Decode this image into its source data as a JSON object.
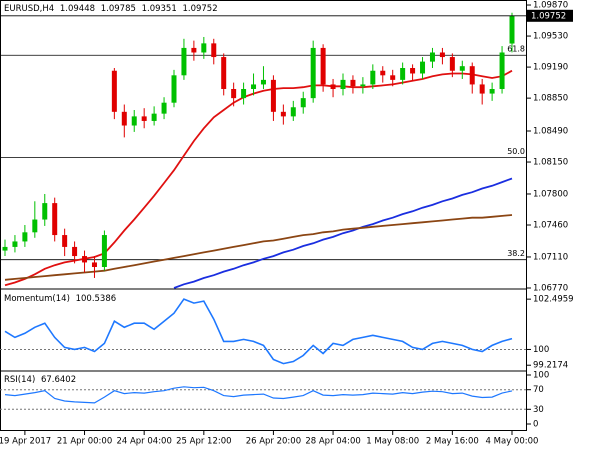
{
  "chart_data": {
    "type": "candlestick",
    "symbol": "EURUSD,H4",
    "categories": [
      null,
      null,
      "19 Apr 2017",
      null,
      null,
      null,
      null,
      null,
      "21 Apr 00:00",
      null,
      null,
      null,
      null,
      null,
      "24 Apr 04:00",
      null,
      null,
      null,
      null,
      null,
      "25 Apr 12:00",
      null,
      null,
      null,
      null,
      null,
      null,
      "26 Apr 20:00",
      null,
      null,
      null,
      null,
      null,
      "28 Apr 04:00",
      null,
      null,
      null,
      null,
      null,
      "1 May 08:00",
      null,
      null,
      null,
      null,
      null,
      "2 May 16:00",
      null,
      null,
      null,
      null,
      null,
      "4 May 00:00"
    ],
    "open": [
      1.0718,
      1.0722,
      1.0728,
      1.0738,
      1.0752,
      1.077,
      1.0735,
      1.0722,
      1.0712,
      1.0705,
      1.07,
      1.0915,
      1.087,
      1.0855,
      1.0865,
      1.086,
      1.0868,
      1.088,
      1.091,
      1.094,
      1.0935,
      1.0945,
      1.093,
      1.0895,
      1.0885,
      1.0895,
      1.09,
      1.0905,
      1.087,
      1.0865,
      1.0875,
      1.0885,
      1.094,
      1.09,
      1.0895,
      1.0905,
      1.0898,
      1.09,
      1.0915,
      1.091,
      1.0905,
      1.0918,
      1.0912,
      1.0925,
      1.0935,
      1.093,
      1.0915,
      1.092,
      1.09,
      1.089,
      1.0895,
      1.09448
    ],
    "high": [
      1.073,
      1.0735,
      1.0746,
      1.0772,
      1.078,
      1.0776,
      1.0742,
      1.0728,
      1.0718,
      1.0712,
      1.074,
      1.0918,
      1.0878,
      1.0872,
      1.0874,
      1.0876,
      1.0886,
      1.0916,
      1.095,
      1.0948,
      1.0952,
      1.095,
      1.0934,
      1.0902,
      1.0902,
      1.0912,
      1.092,
      1.091,
      1.0878,
      1.0882,
      1.0892,
      1.0948,
      1.0944,
      1.0906,
      1.0912,
      1.091,
      1.0908,
      1.0922,
      1.092,
      1.0916,
      1.0924,
      1.0922,
      1.093,
      1.094,
      1.094,
      1.0934,
      1.0926,
      1.0924,
      1.0906,
      1.0902,
      1.0942,
      1.09785
    ],
    "low": [
      1.0712,
      1.0716,
      1.0722,
      1.0732,
      1.0745,
      1.0728,
      1.0712,
      1.0704,
      1.0694,
      1.0688,
      1.0696,
      1.0862,
      1.0842,
      1.0848,
      1.0852,
      1.0855,
      1.0862,
      1.0875,
      1.0905,
      1.0926,
      1.0928,
      1.0922,
      1.0888,
      1.0876,
      1.0878,
      1.0888,
      1.0895,
      1.086,
      1.0856,
      1.086,
      1.0868,
      1.088,
      1.0892,
      1.0886,
      1.0888,
      1.089,
      1.089,
      1.0895,
      1.0902,
      1.0898,
      1.09,
      1.0904,
      1.0906,
      1.0918,
      1.0922,
      1.0908,
      1.0906,
      1.089,
      1.0878,
      1.0882,
      1.089,
      1.09351
    ],
    "close": [
      1.0722,
      1.0728,
      1.0738,
      1.0752,
      1.077,
      1.0735,
      1.0722,
      1.0712,
      1.0705,
      1.07,
      1.0735,
      1.087,
      1.0855,
      1.0865,
      1.086,
      1.0868,
      1.088,
      1.091,
      1.094,
      1.0935,
      1.0945,
      1.093,
      1.0895,
      1.0885,
      1.0895,
      1.09,
      1.0905,
      1.087,
      1.0865,
      1.0875,
      1.0885,
      1.094,
      1.09,
      1.0895,
      1.0905,
      1.0898,
      1.09,
      1.0915,
      1.091,
      1.0905,
      1.0918,
      1.0912,
      1.0925,
      1.0935,
      1.093,
      1.0915,
      1.092,
      1.09,
      1.089,
      1.0895,
      1.0935,
      1.09752
    ],
    "up_color": "#00c000",
    "down_color": "#e00000",
    "series": [
      {
        "color": "#e01010",
        "values": [
          1.068,
          1.0683,
          1.0687,
          1.0692,
          1.0698,
          1.0702,
          1.0705,
          1.0707,
          1.0709,
          1.0711,
          1.0715,
          1.0727,
          1.074,
          1.0752,
          1.0765,
          1.0778,
          1.0792,
          1.0806,
          1.0822,
          1.0838,
          1.0852,
          1.0864,
          1.0872,
          1.088,
          1.0886,
          1.089,
          1.0893,
          1.0895,
          1.0896,
          1.0896,
          1.0897,
          1.0899,
          1.0899,
          1.0898,
          1.0898,
          1.0897,
          1.0897,
          1.0898,
          1.0899,
          1.09,
          1.0902,
          1.0904,
          1.0906,
          1.0909,
          1.0911,
          1.0912,
          1.0912,
          1.0911,
          1.0909,
          1.0907,
          1.0909,
          1.0915
        ]
      },
      {
        "color": "#1a2ee0",
        "values": [
          null,
          null,
          null,
          null,
          null,
          null,
          null,
          null,
          null,
          null,
          null,
          null,
          null,
          null,
          null,
          null,
          null,
          1.0677,
          1.0681,
          1.0684,
          1.0688,
          1.0691,
          1.0695,
          1.0698,
          1.0702,
          1.0705,
          1.0709,
          1.0712,
          1.0716,
          1.0719,
          1.0723,
          1.0726,
          1.073,
          1.0733,
          1.0737,
          1.074,
          1.0744,
          1.0747,
          1.0751,
          1.0754,
          1.0758,
          1.0761,
          1.0765,
          1.0768,
          1.0772,
          1.0775,
          1.0779,
          1.0782,
          1.0786,
          1.0789,
          1.0793,
          1.0797
        ]
      },
      {
        "color": "#8b4513",
        "values": [
          1.0686,
          1.0687,
          1.0688,
          1.0689,
          1.069,
          1.0691,
          1.0692,
          1.0693,
          1.0694,
          1.0695,
          1.0696,
          1.0698,
          1.07,
          1.0702,
          1.0704,
          1.0706,
          1.0708,
          1.071,
          1.0712,
          1.0714,
          1.0716,
          1.0718,
          1.072,
          1.0722,
          1.0724,
          1.0726,
          1.0728,
          1.0729,
          1.0731,
          1.0733,
          1.0735,
          1.0736,
          1.0738,
          1.0739,
          1.0741,
          1.0742,
          1.0743,
          1.0744,
          1.0745,
          1.0746,
          1.0747,
          1.0748,
          1.0749,
          1.075,
          1.0751,
          1.0752,
          1.0753,
          1.0754,
          1.0754,
          1.0755,
          1.0756,
          1.0757
        ]
      }
    ],
    "ylim": [
      1.0677,
      1.09925
    ],
    "yticks": [
      {
        "value": 1.0987,
        "label": "1.09870"
      },
      {
        "value": 1.0953,
        "label": "1.09530"
      },
      {
        "value": 1.0919,
        "label": "1.09190"
      },
      {
        "value": 1.0885,
        "label": "1.08850"
      },
      {
        "value": 1.0849,
        "label": "1.08490"
      },
      {
        "value": 1.0815,
        "label": "1.08150"
      },
      {
        "value": 1.078,
        "label": "1.07800"
      },
      {
        "value": 1.0746,
        "label": "1.07460"
      },
      {
        "value": 1.0711,
        "label": "1.07110"
      },
      {
        "value": 1.0677,
        "label": "1.06770"
      }
    ],
    "levels": [
      {
        "value": 1.0932,
        "label": "61.8"
      },
      {
        "value": 1.082,
        "label": "50.0"
      },
      {
        "value": 1.0708,
        "label": "38.2"
      }
    ],
    "momentum": {
      "name": "Momentum(14)",
      "color": "#1e78ff",
      "values": [
        100.9,
        100.6,
        100.8,
        101.1,
        101.3,
        100.6,
        100.1,
        100.0,
        100.1,
        99.9,
        100.3,
        101.4,
        101.1,
        101.3,
        101.3,
        101.0,
        101.4,
        101.8,
        102.5,
        102.3,
        102.4,
        101.5,
        100.4,
        100.4,
        100.5,
        100.4,
        100.2,
        99.5,
        99.3,
        99.4,
        99.7,
        100.2,
        99.8,
        100.3,
        100.2,
        100.5,
        100.6,
        100.7,
        100.6,
        100.5,
        100.4,
        100.1,
        100.0,
        100.3,
        100.4,
        100.3,
        100.2,
        100.0,
        99.9,
        100.2,
        100.4,
        100.5386
      ],
      "ylim": [
        98.98,
        102.95
      ],
      "yticks": [
        102.4959,
        100,
        99.2174
      ],
      "level": 100
    },
    "rsi": {
      "name": "RSI(14)",
      "color": "#1e78ff",
      "values": [
        60,
        58,
        61,
        64,
        68,
        52,
        47,
        45,
        44,
        43,
        55,
        68,
        62,
        64,
        63,
        66,
        68,
        73,
        76,
        74,
        75,
        68,
        58,
        56,
        59,
        60,
        61,
        53,
        52,
        55,
        58,
        68,
        59,
        58,
        60,
        59,
        60,
        63,
        62,
        61,
        64,
        62,
        65,
        67,
        66,
        62,
        63,
        57,
        54,
        55,
        63,
        67.6402
      ],
      "ylim": [
        0,
        100
      ],
      "yticks": [
        100,
        70,
        30,
        0
      ],
      "levels": [
        70,
        30
      ]
    }
  }
}
